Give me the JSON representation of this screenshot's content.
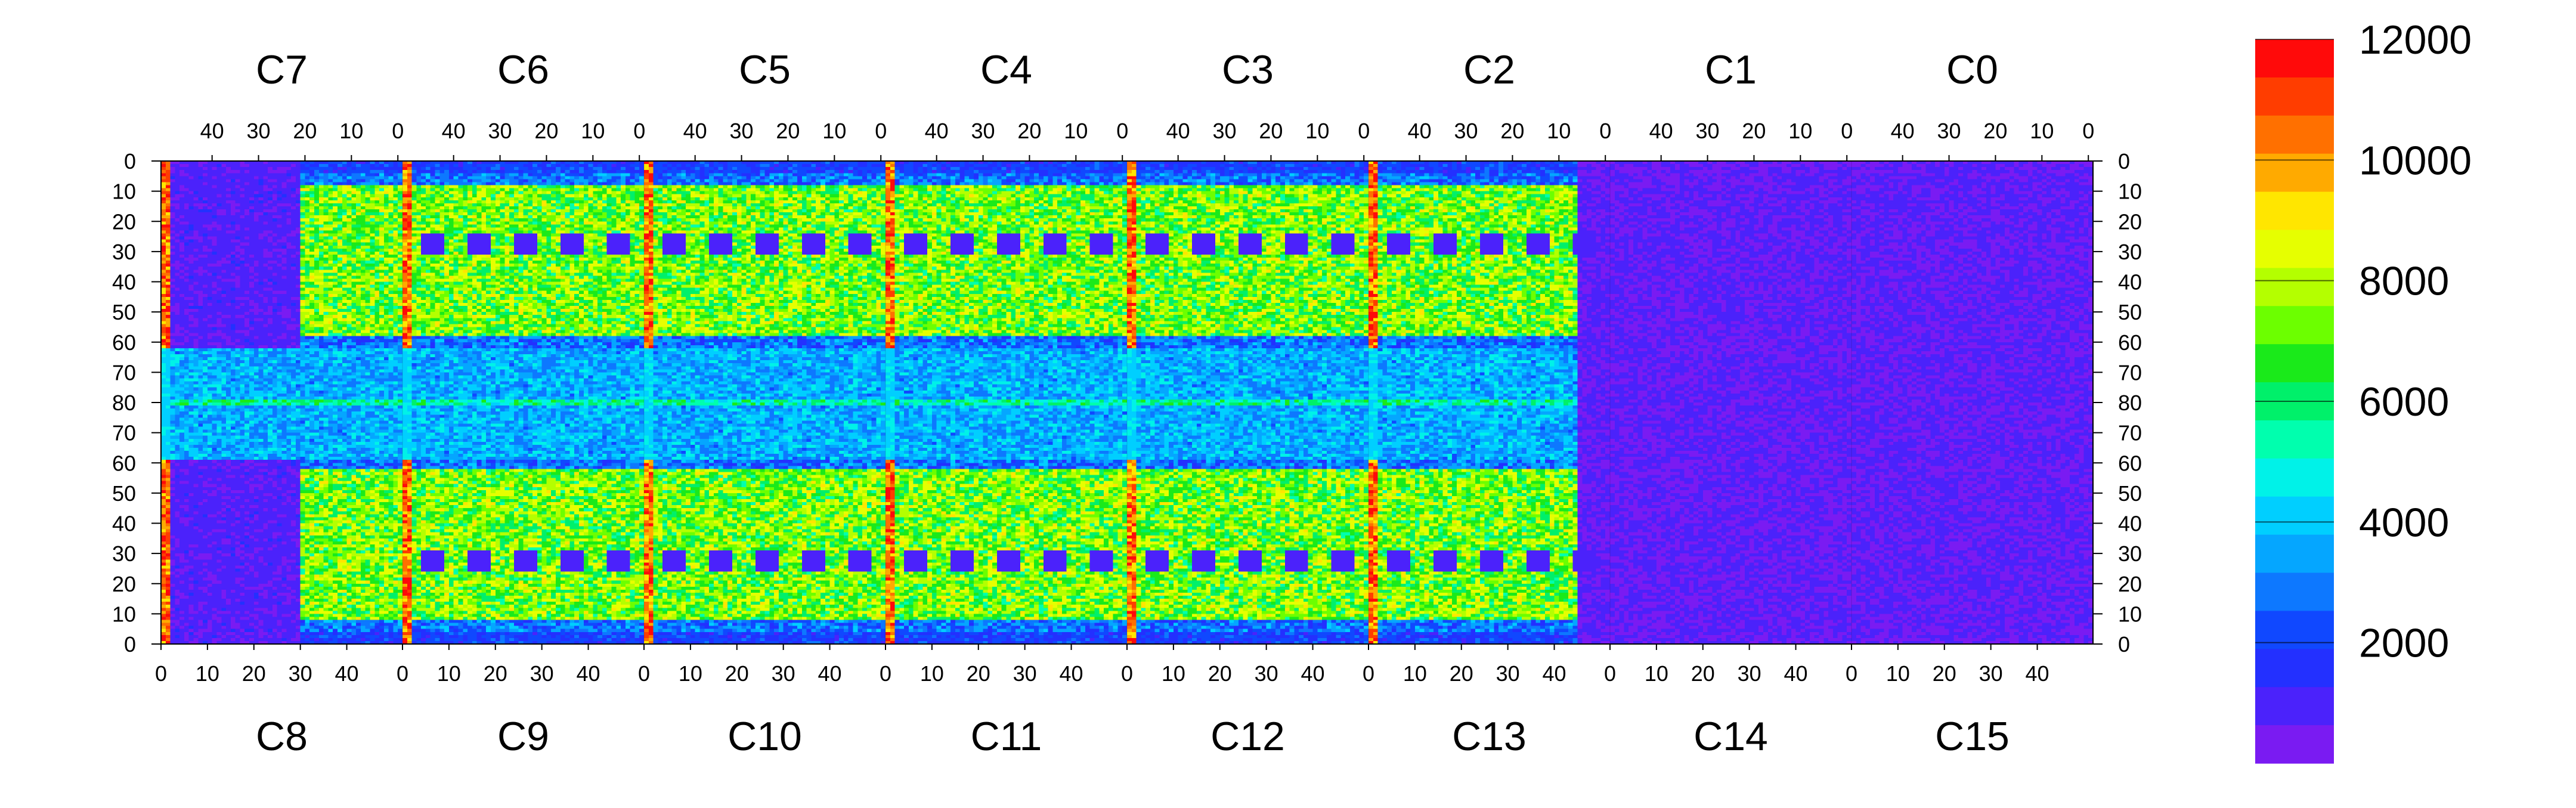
{
  "chart_data": {
    "type": "heatmap",
    "title": "",
    "zlim": [
      0,
      12000
    ],
    "colorbar": {
      "ticks": [
        2000,
        4000,
        6000,
        8000,
        10000,
        12000
      ],
      "tick_labels": [
        "2000",
        "4000",
        "6000",
        "8000",
        "10000",
        "12000"
      ],
      "colors": [
        "#7a1bf2",
        "#4b22fb",
        "#2330ff",
        "#1048ff",
        "#0d78ff",
        "#05a6ff",
        "#00cfff",
        "#00f2e8",
        "#00ffae",
        "#00f06a",
        "#1aea1a",
        "#6cff00",
        "#b4ff00",
        "#e6ff00",
        "#ffe600",
        "#ffaa00",
        "#ff7000",
        "#ff3d00",
        "#ff0a0a"
      ],
      "color_note": "rendered in descending order (12000 at top)"
    },
    "top_chips": [
      "C7",
      "C6",
      "C5",
      "C4",
      "C3",
      "C2",
      "C1",
      "C0"
    ],
    "bottom_chips": [
      "C8",
      "C9",
      "C10",
      "C11",
      "C12",
      "C13",
      "C14",
      "C15"
    ],
    "top_tick_labels": [
      "40",
      "30",
      "20",
      "10",
      "0"
    ],
    "bottom_tick_labels": [
      "0",
      "10",
      "20",
      "30",
      "40"
    ],
    "y_tick_labels": [
      "0",
      "10",
      "20",
      "30",
      "40",
      "50",
      "60",
      "70",
      "80",
      "70",
      "60",
      "50",
      "40",
      "30",
      "20",
      "10",
      "0"
    ],
    "y_ticks_axis_labels": "rows 0-79 of top chips descending, then rows 79-0 of bottom chips",
    "columns_per_chip": 52,
    "rows_per_half": 80,
    "features": {
      "hot_column_value": 11500,
      "typical_high": 7000,
      "typical_low": 1500,
      "dead_region_value": 400,
      "dead_region_x_range": [
        305,
        470
      ],
      "central_band_rows": [
        62,
        98
      ],
      "central_band_value": 2500
    },
    "grid": false,
    "legend": "colorbar-right"
  }
}
